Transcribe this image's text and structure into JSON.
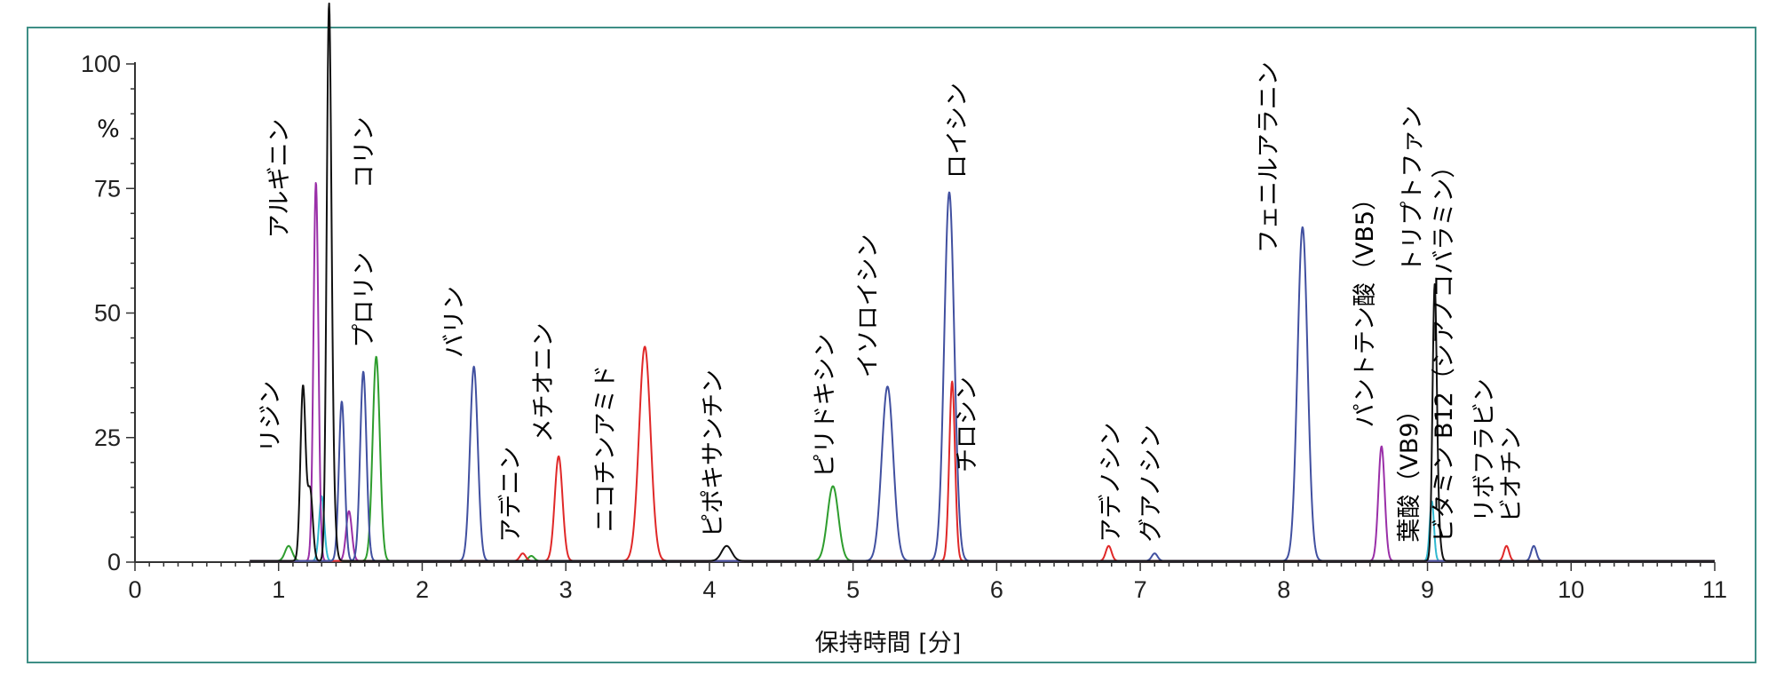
{
  "chart_data": {
    "type": "line",
    "xlabel": "保持時間 [分]",
    "ylabel": "%",
    "xlim": [
      0,
      11
    ],
    "ylim": [
      0,
      100
    ],
    "x_ticks": [
      "0",
      "1",
      "2",
      "3",
      "4",
      "5",
      "6",
      "7",
      "8",
      "9",
      "10",
      "11"
    ],
    "y_ticks": [
      "0",
      "25",
      "50",
      "75",
      "100"
    ],
    "grid": false,
    "colors": {
      "blue": "#4150a0",
      "green": "#2e9d2e",
      "black": "#111111",
      "red": "#e02828",
      "purple": "#9a2fa8",
      "cyan": "#30b8d0"
    },
    "peaks": [
      {
        "rt": 1.07,
        "h": 3,
        "w": 0.025,
        "color": "green"
      },
      {
        "rt": 1.17,
        "h": 35,
        "w": 0.018,
        "color": "black"
      },
      {
        "rt": 1.22,
        "h": 14,
        "w": 0.018,
        "color": "black"
      },
      {
        "rt": 1.26,
        "h": 76,
        "w": 0.017,
        "color": "purple"
      },
      {
        "rt": 1.3,
        "h": 13,
        "w": 0.018,
        "color": "cyan"
      },
      {
        "rt": 1.35,
        "h": 100,
        "w": 0.016,
        "color": "black"
      },
      {
        "rt": 1.37,
        "h": 19,
        "w": 0.02,
        "color": "black"
      },
      {
        "rt": 1.44,
        "h": 32,
        "w": 0.02,
        "color": "blue"
      },
      {
        "rt": 1.49,
        "h": 10,
        "w": 0.02,
        "color": "purple"
      },
      {
        "rt": 1.59,
        "h": 38,
        "w": 0.022,
        "color": "blue"
      },
      {
        "rt": 1.68,
        "h": 41,
        "w": 0.025,
        "color": "green"
      },
      {
        "rt": 2.36,
        "h": 39,
        "w": 0.027,
        "color": "blue"
      },
      {
        "rt": 2.7,
        "h": 1.5,
        "w": 0.02,
        "color": "red"
      },
      {
        "rt": 2.76,
        "h": 1,
        "w": 0.02,
        "color": "green"
      },
      {
        "rt": 2.95,
        "h": 21,
        "w": 0.027,
        "color": "red"
      },
      {
        "rt": 3.55,
        "h": 43,
        "w": 0.04,
        "color": "red"
      },
      {
        "rt": 4.12,
        "h": 3,
        "w": 0.035,
        "color": "black"
      },
      {
        "rt": 4.86,
        "h": 15,
        "w": 0.038,
        "color": "green"
      },
      {
        "rt": 5.24,
        "h": 35,
        "w": 0.04,
        "color": "blue"
      },
      {
        "rt": 5.67,
        "h": 74,
        "w": 0.035,
        "color": "blue"
      },
      {
        "rt": 5.69,
        "h": 36,
        "w": 0.02,
        "color": "red"
      },
      {
        "rt": 6.78,
        "h": 3,
        "w": 0.02,
        "color": "red"
      },
      {
        "rt": 7.1,
        "h": 1.5,
        "w": 0.02,
        "color": "blue"
      },
      {
        "rt": 8.13,
        "h": 67,
        "w": 0.035,
        "color": "blue"
      },
      {
        "rt": 8.68,
        "h": 23,
        "w": 0.022,
        "color": "purple"
      },
      {
        "rt": 9.03,
        "h": 12,
        "w": 0.015,
        "color": "cyan"
      },
      {
        "rt": 9.05,
        "h": 55,
        "w": 0.015,
        "color": "black"
      },
      {
        "rt": 9.08,
        "h": 4,
        "w": 0.015,
        "color": "black"
      },
      {
        "rt": 9.55,
        "h": 3,
        "w": 0.018,
        "color": "red"
      },
      {
        "rt": 9.74,
        "h": 3,
        "w": 0.018,
        "color": "blue"
      }
    ],
    "annotations": [
      {
        "text": "リジン",
        "x": 1.0,
        "y": 22,
        "lines": 1
      },
      {
        "text": "アルギニン",
        "x": 1.06,
        "y": 65,
        "lines": 1
      },
      {
        "text": "コリン",
        "x": 1.65,
        "y": 75,
        "lines": 1
      },
      {
        "text": "プロリン",
        "x": 1.65,
        "y": 43,
        "lines": 1
      },
      {
        "text": "バリン",
        "x": 2.28,
        "y": 41,
        "lines": 1
      },
      {
        "text": "アデニン",
        "x": 2.67,
        "y": 4,
        "lines": 1
      },
      {
        "text": "メチオニン",
        "x": 2.9,
        "y": 24,
        "lines": 1
      },
      {
        "text": "ニコチンアミド",
        "x": 3.33,
        "y": 6,
        "lines": 1
      },
      {
        "text": "ピポキサンチン",
        "x": 4.08,
        "y": 5,
        "lines": 1
      },
      {
        "text": "ピリドキシン",
        "x": 4.86,
        "y": 17,
        "lines": 1
      },
      {
        "text": "イソロイシン",
        "x": 5.16,
        "y": 37,
        "lines": 1
      },
      {
        "text": "ロイシン",
        "x": 5.78,
        "y": 77,
        "lines": 1
      },
      {
        "text": "チロシン",
        "x": 5.85,
        "y": 18,
        "lines": 1
      },
      {
        "text": "アデノシン",
        "x": 6.85,
        "y": 4,
        "lines": 1
      },
      {
        "text": "グアノシン",
        "x": 7.13,
        "y": 4,
        "lines": 1
      },
      {
        "text": "フェニルアラニン",
        "x": 7.95,
        "y": 62,
        "lines": 1
      },
      {
        "text": "パントテン酸（VB5）",
        "x": 8.62,
        "y": 27,
        "lines": 1
      },
      {
        "text": "葉酸（VB9）",
        "x": 8.93,
        "y": 4,
        "lines": 1
      },
      {
        "text": "トリプトファン",
        "x": 8.95,
        "y": 58,
        "lines": 1
      },
      {
        "text": "ビタミン B12（シアノコバラミン）",
        "x": 9.17,
        "y": 4,
        "lines": 1
      },
      {
        "text": "リボフラビン",
        "x": 9.45,
        "y": 8,
        "lines": 1
      },
      {
        "text": "ビオチン",
        "x": 9.64,
        "y": 8,
        "lines": 1
      }
    ]
  }
}
